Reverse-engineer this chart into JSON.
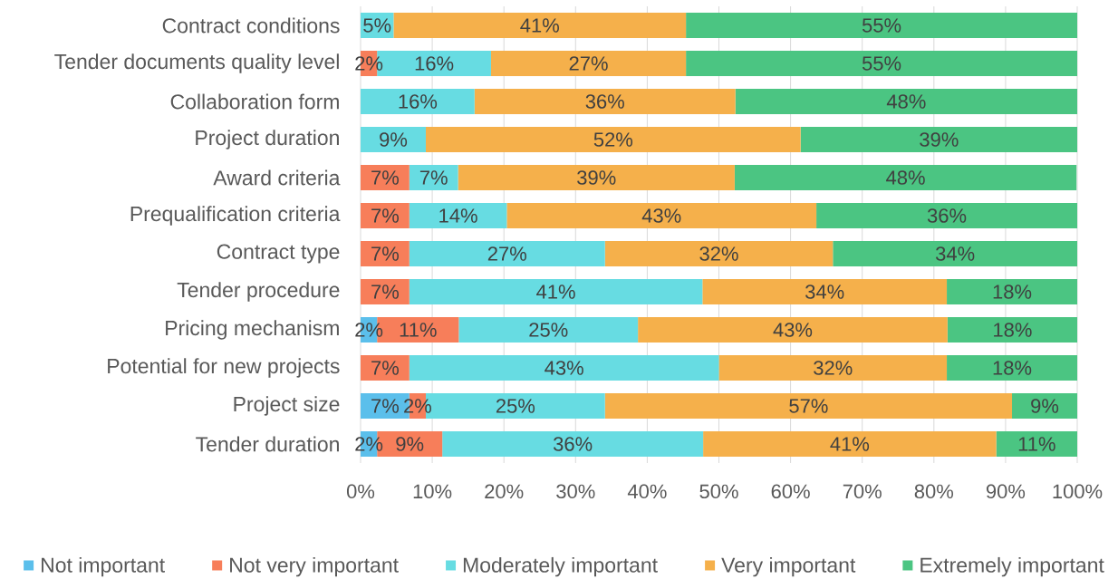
{
  "chart_data": {
    "type": "bar",
    "orientation": "horizontal",
    "stacked": true,
    "categories": [
      "Contract conditions",
      "Tender documents quality level",
      "Collaboration form",
      "Project duration",
      "Award criteria",
      "Prequalification criteria",
      "Contract type",
      "Tender procedure",
      "Pricing mechanism",
      "Potential for new projects",
      "Project size",
      "Tender duration"
    ],
    "series": [
      {
        "name": "Not important",
        "color": "#5bbfeb",
        "values": [
          0,
          0,
          0,
          0,
          0,
          0,
          0,
          0,
          2.3,
          0,
          6.8,
          2.3
        ],
        "value_labels": [
          null,
          null,
          null,
          null,
          null,
          null,
          null,
          null,
          "2%",
          null,
          "7%",
          "2%"
        ]
      },
      {
        "name": "Not very important",
        "color": "#f77e5a",
        "values": [
          0,
          2.3,
          0,
          0,
          6.8,
          6.8,
          6.8,
          6.8,
          11.4,
          6.8,
          2.3,
          9.1
        ],
        "value_labels": [
          null,
          "2%",
          null,
          null,
          "7%",
          "7%",
          "7%",
          "7%",
          "11%",
          "7%",
          "2%",
          "9%"
        ]
      },
      {
        "name": "Moderately important",
        "color": "#67dce2",
        "values": [
          4.6,
          15.9,
          15.9,
          9.1,
          6.8,
          13.6,
          27.3,
          40.9,
          25.0,
          43.2,
          25.0,
          36.4
        ],
        "value_labels": [
          "5%",
          "16%",
          "16%",
          "9%",
          "7%",
          "14%",
          "27%",
          "41%",
          "25%",
          "43%",
          "25%",
          "36%"
        ]
      },
      {
        "name": "Very important",
        "color": "#f5b04b",
        "values": [
          40.8,
          27.2,
          36.4,
          52.3,
          38.6,
          43.2,
          31.8,
          34.1,
          43.2,
          31.8,
          56.8,
          40.9
        ],
        "value_labels": [
          "41%",
          "27%",
          "36%",
          "52%",
          "39%",
          "43%",
          "32%",
          "34%",
          "43%",
          "32%",
          "57%",
          "41%"
        ]
      },
      {
        "name": "Extremely important",
        "color": "#4bc582",
        "values": [
          54.6,
          54.6,
          47.7,
          38.6,
          47.7,
          36.4,
          34.1,
          18.2,
          18.1,
          18.2,
          9.1,
          11.3
        ],
        "value_labels": [
          "55%",
          "55%",
          "48%",
          "39%",
          "48%",
          "36%",
          "34%",
          "18%",
          "18%",
          "18%",
          "9%",
          "11%"
        ]
      }
    ],
    "xlim": [
      0,
      100
    ],
    "xticks": [
      {
        "value": 0,
        "label": "0%"
      },
      {
        "value": 10,
        "label": "10%"
      },
      {
        "value": 20,
        "label": "20%"
      },
      {
        "value": 30,
        "label": "30%"
      },
      {
        "value": 40,
        "label": "40%"
      },
      {
        "value": 50,
        "label": "50%"
      },
      {
        "value": 60,
        "label": "60%"
      },
      {
        "value": 70,
        "label": "70%"
      },
      {
        "value": 80,
        "label": "80%"
      },
      {
        "value": 90,
        "label": "90%"
      },
      {
        "value": 100,
        "label": "100%"
      }
    ],
    "grid": "x",
    "legend": "bottom"
  }
}
